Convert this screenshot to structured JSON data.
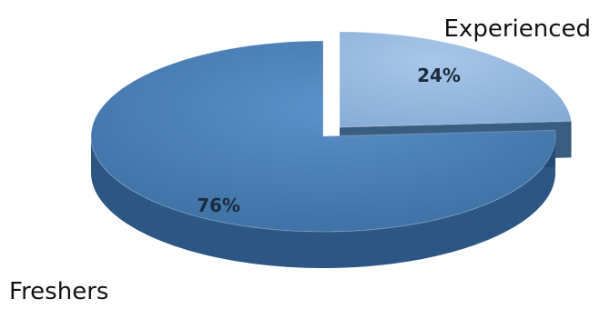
{
  "chart_data": {
    "type": "pie",
    "style": "3d-exploded",
    "categories": [
      "Freshers",
      "Experienced"
    ],
    "values": [
      76,
      24
    ],
    "unit": "%",
    "data_labels": [
      "76%",
      "24%"
    ],
    "colors": {
      "Freshers": "#3f73a8",
      "Experienced": "#8fb4de"
    },
    "title": "",
    "legend": "none"
  }
}
